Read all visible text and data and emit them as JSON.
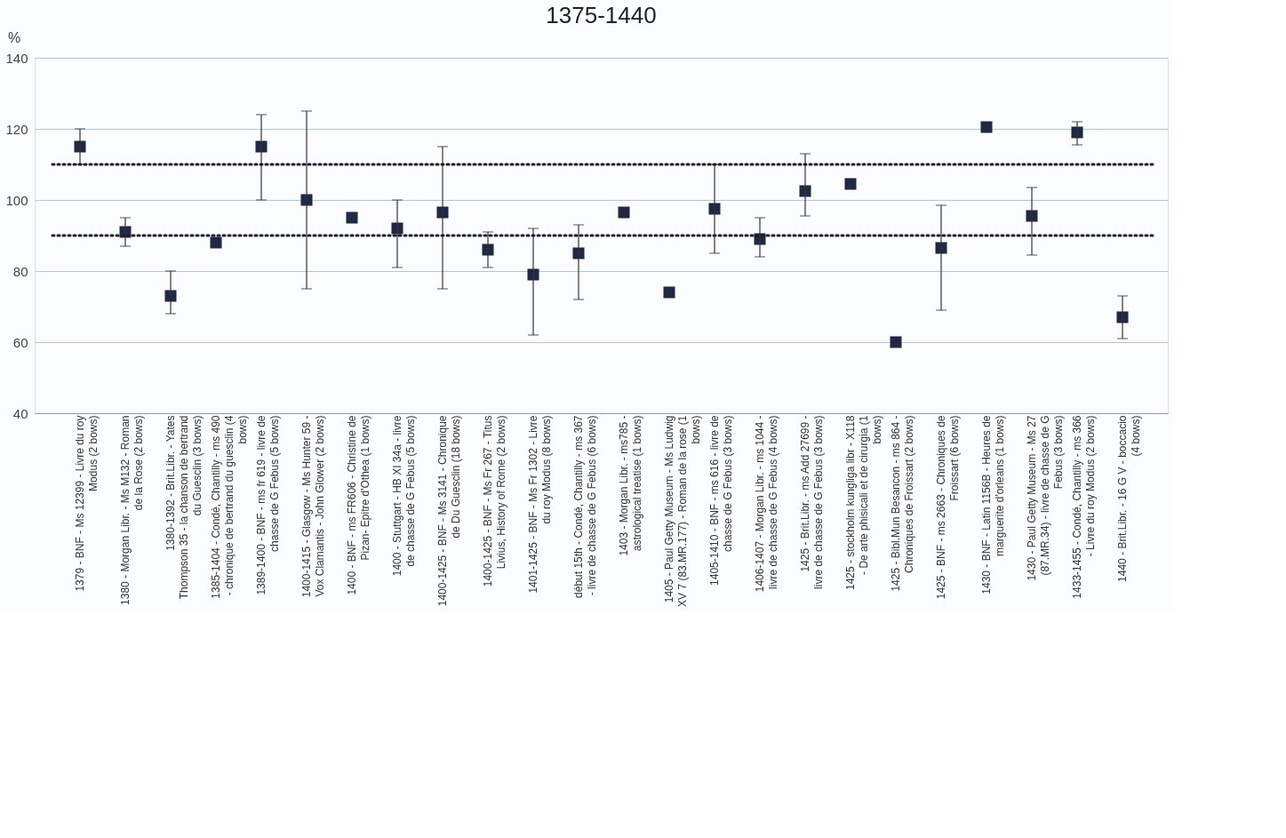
{
  "chart_data": {
    "type": "scatter",
    "title": "1375-1440",
    "ylabel": "%",
    "categories": [
      "1379 - BNF - Ms 12399 - Livre du roy Modus (2 bows)",
      "1380 - Morgan Libr. - Ms M132 - Roman de la Rose (2 bows)",
      "1380-1392 - Brit.Libr. - Yates Thompson 35 - la chanson de bertrand du Guesclin (3 bows)",
      "1385-1404 - Condé, Chantilly - ms 490 - chronique de bertrand du guesclin (4 bows)",
      "1389-1400 - BNF - ms fr 619 - livre de chasse de G Febus (5 bows)",
      "1400-1415 - Glasgow - Ms Hunter 59 - Vox Clamantis - John Glower (2 bows)",
      "1400 - BNF - ms FR606 - Christine de Pizan- Epitre d'Othea (1 bows)",
      "1400 - Stuttgart - HB XI 34a - livre de chasse de G Febus (5 bows)",
      "1400-1425 - BNF - Ms 3141 - Chronique de Du Guesclin (18 bows)",
      "1400-1425 - BNF - Ms Fr 267 - Titus Livius, History of Rome (2 bows)",
      "1401-1425 - BNF - Ms Fr 1302 - Livre du roy Modus (8 bows)",
      "début 15th - Condé, Chantilly - ms 367 - livre de chasse de G Febus (6 bows)",
      "1403 - Morgan Libr. - ms785 - astrological treatise (1 bows)",
      "1405 - Paul Getty Museum - Ms Ludwig XV 7 (83.MR.177) - Roman de la rose (1 bows)",
      "1405-1410 - BNF - ms 616 - livre de chasse de G Febus (3 bows)",
      "1406-1407 - Morgan Libr. - ms 1044 - livre de chasse de G Febus (4 bows)",
      "1425 - Brit.Libr. - ms Add 27699 - livre de chasse de G Febus (3 bows)",
      "1425 - stockholm kungliga libr - X118 - De arte phisicali et de cirurgia (1 bows)",
      "1425 - Bibl.Mun Besancon - ms 864 - Chroniques de Froissart (2 bows)",
      "1425 - BNF - ms 2663 - Chroniques de Froissart (6 bows)",
      "1430 - BNF - Latin 1156B - Heures de marguerite d'orleans (1 bows)",
      "1430 - Paul Getty Museum - Ms 27 (87.MR.34) - livre de chasse de G Febus (3 bows)",
      "1433-1455 - Condé, Chantilly - ms 366 - Livre du roy Modus (2 bows)",
      "1440 - Brit.Libr. - 16 G V - boccacio (4 bows)"
    ],
    "series": [
      {
        "color": "#1f2944",
        "values": [
          115,
          91,
          73,
          88,
          115,
          100,
          95,
          92,
          96.5,
          86,
          79,
          85,
          96.5,
          74,
          97.5,
          89,
          102.5,
          104.5,
          60,
          86.5,
          120.5,
          95.5,
          119,
          67
        ],
        "errors": [
          [
            110,
            120
          ],
          [
            87,
            95
          ],
          [
            68,
            80
          ],
          null,
          [
            100,
            124
          ],
          [
            75,
            125
          ],
          null,
          [
            81,
            100
          ],
          [
            75,
            115
          ],
          [
            81,
            91
          ],
          [
            62,
            92
          ],
          [
            72,
            93
          ],
          null,
          null,
          [
            85,
            110
          ],
          [
            84,
            95
          ],
          [
            95.5,
            113
          ],
          null,
          null,
          [
            69,
            98.5
          ],
          null,
          [
            84.5,
            103.5
          ],
          [
            115.5,
            122
          ],
          [
            61,
            73
          ]
        ]
      }
    ],
    "ylim": [
      40,
      140
    ],
    "yticks": [
      40,
      60,
      80,
      100,
      120,
      140
    ],
    "grid": "y",
    "marker": "square",
    "ref_lines": [
      {
        "axis": "y",
        "value": 110,
        "color": "#1a1a2e",
        "line_style": "dotted"
      },
      {
        "axis": "y",
        "value": 90,
        "color": "#1a1a2e",
        "line_style": "dotted"
      }
    ]
  }
}
